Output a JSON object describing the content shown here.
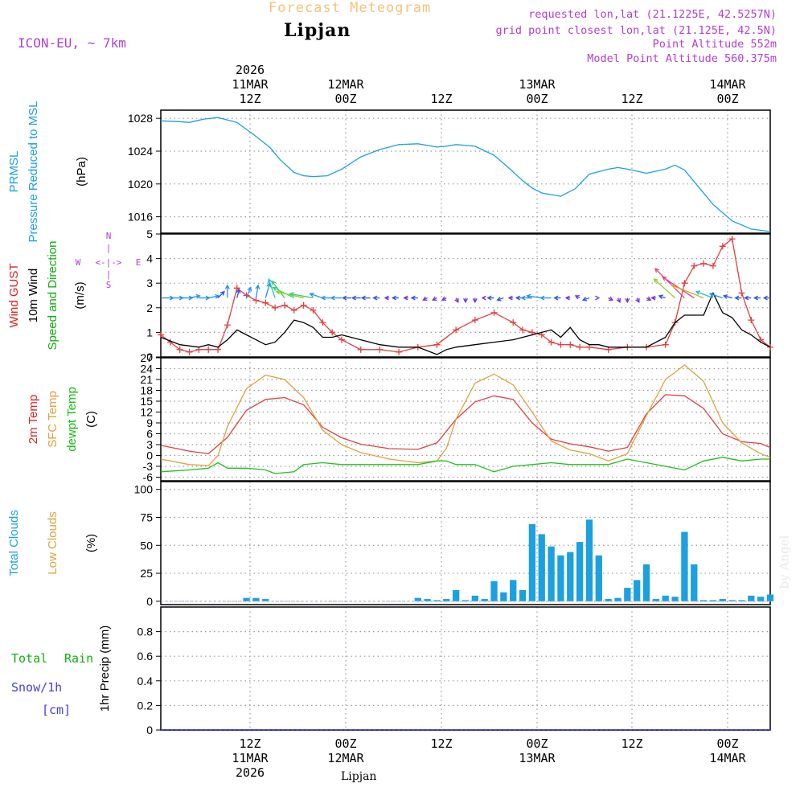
{
  "header": {
    "title": "Forecast Meteogram",
    "location": "Lipjan",
    "model": "ICON-EU, ~ 7km",
    "requested": "requested lon,lat (21.1225E, 42.5257N)",
    "gridpoint": "grid point closest lon,lat (21.125E, 42.5N)",
    "point_alt": "Point Altitude 552m",
    "model_alt": "Model Point Altitude 560.375m",
    "footer_location": "Lipjan",
    "watermark": "by Angel",
    "colors": {
      "title": "#f4c27a",
      "info": "#b040d0",
      "location": "#000000"
    }
  },
  "time_axis": {
    "top_labels": [
      {
        "line1": "2026",
        "line2": "11MAR",
        "line3": "12Z"
      },
      {
        "line1": "",
        "line2": "12MAR",
        "line3": "00Z"
      },
      {
        "line1": "",
        "line2": "",
        "line3": "12Z"
      },
      {
        "line1": "",
        "line2": "13MAR",
        "line3": "00Z"
      },
      {
        "line1": "",
        "line2": "",
        "line3": "12Z"
      },
      {
        "line1": "",
        "line2": "14MAR",
        "line3": "00Z"
      }
    ],
    "bottom_labels": [
      {
        "line1": "12Z",
        "line2": "11MAR",
        "line3": "2026"
      },
      {
        "line1": "00Z",
        "line2": "12MAR",
        "line3": ""
      },
      {
        "line1": "12Z",
        "line2": "",
        "line3": ""
      },
      {
        "line1": "00Z",
        "line2": "13MAR",
        "line3": ""
      },
      {
        "line1": "12Z",
        "line2": "",
        "line3": ""
      },
      {
        "line1": "00Z",
        "line2": "14MAR",
        "line3": ""
      }
    ]
  },
  "chart_data": [
    {
      "type": "line",
      "panel": "pressure",
      "labels": [
        "PRMSL",
        "Pressure Reduced to MSL",
        "(hPa)"
      ],
      "label_colors": [
        "#1ba0e0",
        "#1ba0e0",
        "#000000"
      ],
      "ylim": [
        1014,
        1029
      ],
      "yticks": [
        "1016",
        "1020",
        "1024",
        "1028"
      ],
      "x_range_hours": [
        -9,
        55
      ],
      "series": [
        {
          "name": "PRMSL",
          "color": "#1ba0e0",
          "x": [
            -9,
            -7,
            -6,
            -4.5,
            -3,
            -1,
            1,
            2.5,
            3.5,
            5,
            6,
            7,
            8.5,
            10,
            12,
            14,
            16,
            18,
            20,
            21,
            22,
            24,
            26,
            27.5,
            29,
            30,
            31,
            33,
            34.5,
            36,
            38,
            39,
            40,
            42,
            44,
            45,
            46,
            47.5,
            49,
            51,
            53,
            55
          ],
          "values": [
            1027.7,
            1027.6,
            1027.5,
            1027.9,
            1028.1,
            1027.5,
            1025.8,
            1024.4,
            1023.0,
            1021.4,
            1021.0,
            1020.9,
            1021.0,
            1021.8,
            1023.3,
            1024.2,
            1024.8,
            1024.9,
            1024.5,
            1024.6,
            1024.8,
            1024.6,
            1023.5,
            1022.0,
            1020.4,
            1019.5,
            1018.9,
            1018.5,
            1019.4,
            1021.2,
            1021.8,
            1022.0,
            1021.8,
            1021.3,
            1021.8,
            1022.3,
            1021.7,
            1019.6,
            1017.5,
            1015.5,
            1014.5,
            1014.2
          ]
        }
      ]
    },
    {
      "type": "line",
      "panel": "wind",
      "labels": [
        "Wind GUST",
        "10m Wind",
        "Speed and Direction",
        "(m/s)"
      ],
      "label_colors": [
        "#e02020",
        "#000000",
        "#10b010",
        "#000000"
      ],
      "compass": {
        "n": "N",
        "s": "S",
        "w": "W",
        "e": "E",
        "color": "#b040d0"
      },
      "ylim": [
        0,
        5
      ],
      "yticks": [
        "0",
        "1",
        "2",
        "3",
        "4",
        "5"
      ],
      "series": [
        {
          "name": "Wind GUST",
          "color": "#e04040",
          "x": [
            -9,
            -8,
            -7,
            -6,
            -5,
            -4,
            -3,
            -2,
            -1,
            0,
            1,
            2,
            3,
            4,
            5,
            6,
            7,
            8,
            9,
            10,
            12,
            14,
            16,
            18,
            20,
            22,
            24,
            26,
            28,
            29,
            30,
            31,
            32,
            33,
            34,
            35,
            36,
            38,
            40,
            42,
            44,
            45,
            46,
            47,
            48,
            49,
            50,
            51,
            52,
            53,
            54,
            55
          ],
          "values": [
            0.9,
            0.6,
            0.3,
            0.2,
            0.3,
            0.3,
            0.3,
            1.3,
            2.8,
            2.5,
            2.3,
            2.2,
            2.0,
            2.1,
            1.9,
            2.1,
            1.9,
            1.4,
            1.0,
            0.7,
            0.3,
            0.3,
            0.2,
            0.4,
            0.5,
            1.1,
            1.5,
            1.8,
            1.4,
            1.1,
            1.0,
            0.9,
            0.6,
            0.5,
            0.5,
            0.4,
            0.4,
            0.3,
            0.4,
            0.4,
            0.5,
            1.4,
            3.0,
            3.7,
            3.8,
            3.7,
            4.5,
            4.8,
            2.6,
            1.5,
            0.7,
            0.4
          ]
        },
        {
          "name": "10m Wind",
          "color": "#000000",
          "x": [
            -9,
            -7,
            -5,
            -4,
            -3,
            -2,
            -1,
            0,
            1,
            2,
            3,
            4,
            5,
            6,
            7,
            8,
            9,
            10,
            12,
            14,
            16,
            18,
            20,
            21,
            22,
            24,
            26,
            28,
            30,
            32,
            33,
            34,
            35,
            36,
            37,
            38,
            40,
            42,
            44,
            45,
            46,
            47,
            48,
            49,
            50,
            51,
            52,
            53,
            54,
            55
          ],
          "values": [
            0.8,
            0.5,
            0.4,
            0.5,
            0.4,
            0.7,
            1.1,
            0.9,
            0.7,
            0.5,
            0.6,
            1.0,
            1.5,
            1.4,
            1.2,
            0.8,
            0.8,
            0.9,
            0.7,
            0.5,
            0.4,
            0.4,
            0.1,
            0.3,
            0.4,
            0.5,
            0.6,
            0.7,
            0.9,
            1.1,
            0.8,
            1.2,
            0.7,
            0.5,
            0.5,
            0.4,
            0.4,
            0.4,
            0.8,
            1.4,
            1.7,
            1.7,
            1.7,
            2.6,
            1.8,
            1.6,
            1.1,
            0.9,
            0.6,
            0.4
          ]
        }
      ],
      "barbs": {
        "baseline": 2.4,
        "x": [
          -9,
          -8,
          -7,
          -6,
          -5,
          -4,
          -3,
          -2,
          -1,
          0,
          1,
          2,
          3,
          4,
          5,
          6,
          7,
          8,
          9,
          10,
          11,
          12,
          13,
          14,
          15,
          16,
          17,
          18,
          19,
          20,
          21,
          22,
          23,
          24,
          25,
          26,
          27,
          28,
          29,
          30,
          31,
          32,
          33,
          34,
          35,
          36,
          37,
          38,
          39,
          40,
          41,
          42,
          43,
          44,
          45,
          46,
          47,
          48,
          49,
          50,
          51,
          52,
          53,
          54,
          55
        ],
        "u": [
          0.6,
          0.6,
          0.6,
          0.5,
          0.5,
          0.5,
          0.3,
          0.0,
          0.1,
          0.2,
          0.1,
          0.2,
          -0.3,
          -0.6,
          -1.0,
          -1.3,
          -1.1,
          -0.6,
          -0.5,
          -0.5,
          -0.4,
          -0.4,
          -0.4,
          -0.3,
          -0.2,
          -0.3,
          -0.2,
          -0.3,
          -0.2,
          -0.2,
          -0.2,
          0.1,
          0.0,
          0.0,
          -0.1,
          -0.3,
          -0.3,
          -0.2,
          -0.3,
          -0.5,
          -0.7,
          -0.5,
          -0.3,
          -0.2,
          -0.2,
          -0.3,
          0.0,
          0.2,
          0.1,
          0.0,
          0.1,
          0.2,
          -0.2,
          -0.3,
          -1.0,
          -1.4,
          -1.5,
          -1.5,
          -0.8,
          -0.6,
          -0.4,
          -0.3,
          -0.3,
          -0.3,
          -0.3
        ],
        "v": [
          0.0,
          0.0,
          0.0,
          0.1,
          0.0,
          0.1,
          0.3,
          0.6,
          0.4,
          0.5,
          0.6,
          0.7,
          0.9,
          0.8,
          0.5,
          0.3,
          0.2,
          0.2,
          0.0,
          0.0,
          0.0,
          0.0,
          0.0,
          0.0,
          0.0,
          0.0,
          0.0,
          0.0,
          -0.1,
          -0.1,
          -0.1,
          -0.2,
          -0.2,
          -0.2,
          0.0,
          0.0,
          -0.1,
          0.0,
          0.0,
          0.0,
          0.1,
          0.0,
          0.0,
          0.0,
          0.1,
          -0.1,
          0.0,
          -0.1,
          -0.2,
          -0.2,
          -0.2,
          -0.1,
          0.0,
          0.1,
          0.9,
          1.4,
          1.0,
          0.6,
          0.3,
          0.2,
          0.1,
          0.0,
          0.0,
          0.0,
          0.0
        ]
      }
    },
    {
      "type": "line",
      "panel": "temperature",
      "labels": [
        "2m Temp",
        "SFC Temp",
        "dewpt Temp",
        "(C)"
      ],
      "label_colors": [
        "#e02020",
        "#e0a040",
        "#10c010",
        "#000000"
      ],
      "ylim": [
        -7,
        27
      ],
      "yticks": [
        "-6",
        "-3",
        "0",
        "3",
        "6",
        "9",
        "12",
        "15",
        "18",
        "21",
        "24",
        "27"
      ],
      "series": [
        {
          "name": "2m Temp",
          "color": "#e04040",
          "x": [
            -9,
            -6,
            -4,
            -2,
            0,
            2,
            4,
            6,
            8,
            10,
            12,
            15,
            18,
            20,
            22,
            24,
            26,
            28,
            30,
            32,
            34,
            36,
            38,
            40,
            42,
            44,
            46,
            48,
            50,
            52,
            54,
            55
          ],
          "values": [
            2.8,
            1.2,
            0.5,
            5.0,
            12.5,
            15.5,
            16.0,
            14.0,
            7.8,
            4.9,
            3.1,
            1.9,
            1.7,
            3.5,
            10.0,
            14.8,
            16.5,
            15.5,
            9.0,
            4.5,
            3.2,
            2.4,
            1.2,
            2.2,
            11.5,
            16.8,
            16.5,
            13.0,
            6.0,
            3.8,
            3.3,
            2.2
          ]
        },
        {
          "name": "SFC Temp",
          "color": "#e0a040",
          "x": [
            -9,
            -6,
            -4,
            -3,
            -2,
            0,
            2,
            4,
            6,
            8,
            10,
            12,
            15,
            18,
            20,
            21,
            22,
            24,
            26,
            28,
            30,
            32,
            34,
            36,
            38,
            40,
            42,
            44,
            46,
            48,
            50,
            52,
            54,
            55
          ],
          "values": [
            -1.0,
            -2.5,
            -2.8,
            0.0,
            8.0,
            18.5,
            22.2,
            21.0,
            16.0,
            7.0,
            3.0,
            0.8,
            -1.0,
            -2.0,
            -1.5,
            2.0,
            10.0,
            20.0,
            22.5,
            19.5,
            12.0,
            4.0,
            1.5,
            0.5,
            -1.5,
            0.5,
            11.0,
            21.0,
            25.0,
            20.5,
            9.0,
            3.5,
            0.5,
            -0.5
          ]
        },
        {
          "name": "dewpt Temp",
          "color": "#20c020",
          "x": [
            -9,
            -6,
            -4,
            -3,
            -2,
            0,
            2,
            3,
            5,
            6,
            8,
            10,
            14,
            18,
            20,
            21,
            22,
            24,
            26,
            28,
            30,
            32,
            34,
            36,
            38,
            40,
            42,
            44,
            46,
            48,
            50,
            52,
            54,
            55
          ],
          "values": [
            -4.5,
            -4.0,
            -3.5,
            -2.0,
            -3.5,
            -3.5,
            -4.0,
            -5.0,
            -4.5,
            -2.5,
            -2.0,
            -2.5,
            -2.5,
            -2.5,
            -1.5,
            -1.5,
            -2.5,
            -2.5,
            -4.5,
            -3.0,
            -2.5,
            -2.0,
            -2.5,
            -2.5,
            -2.5,
            -1.0,
            -2.0,
            -3.0,
            -4.0,
            -1.5,
            -0.5,
            -1.5,
            -1.0,
            -1.0
          ]
        }
      ]
    },
    {
      "type": "bar",
      "panel": "clouds",
      "labels": [
        "Total Clouds",
        "Low Clouds",
        "(%)"
      ],
      "label_colors": [
        "#1ba0e0",
        "#e0a040",
        "#000000"
      ],
      "ylim": [
        -3,
        107
      ],
      "yticks": [
        "0",
        "25",
        "50",
        "75",
        "100"
      ],
      "bar_color": "#1ba0e0",
      "x": [
        0,
        1,
        2,
        18,
        19,
        20,
        21,
        22,
        23,
        24,
        25,
        26,
        27,
        28,
        29,
        30,
        31,
        32,
        33,
        34,
        35,
        36,
        37,
        38,
        39,
        40,
        41,
        42,
        43,
        44,
        45,
        46,
        47,
        48,
        49,
        50,
        51,
        52,
        53,
        54,
        55
      ],
      "values": [
        3,
        3,
        2,
        3,
        2,
        1,
        2,
        10,
        1,
        5,
        2,
        18,
        8,
        19,
        10,
        69,
        60,
        49,
        41,
        44,
        53,
        73,
        41,
        2,
        3,
        12,
        19,
        33,
        2,
        5,
        4,
        62,
        33,
        1,
        1,
        2,
        1,
        1,
        5,
        4,
        6
      ]
    },
    {
      "type": "line",
      "panel": "precipitation",
      "labels": [
        "Total",
        "Rain",
        "Snow/1h",
        "[cm]",
        "1hr Precip (mm)"
      ],
      "label_colors": [
        "#10b010",
        "#10b010",
        "#4040e0",
        "#4040e0",
        "#000000"
      ],
      "ylim": [
        0,
        1
      ],
      "yticks": [
        "0",
        "0.2",
        "0.4",
        "0.6",
        "0.8"
      ],
      "series": [
        {
          "name": "1hr Precip",
          "color": "#4040e0",
          "x": [
            -9,
            55
          ],
          "values": [
            0,
            0
          ]
        }
      ]
    }
  ]
}
